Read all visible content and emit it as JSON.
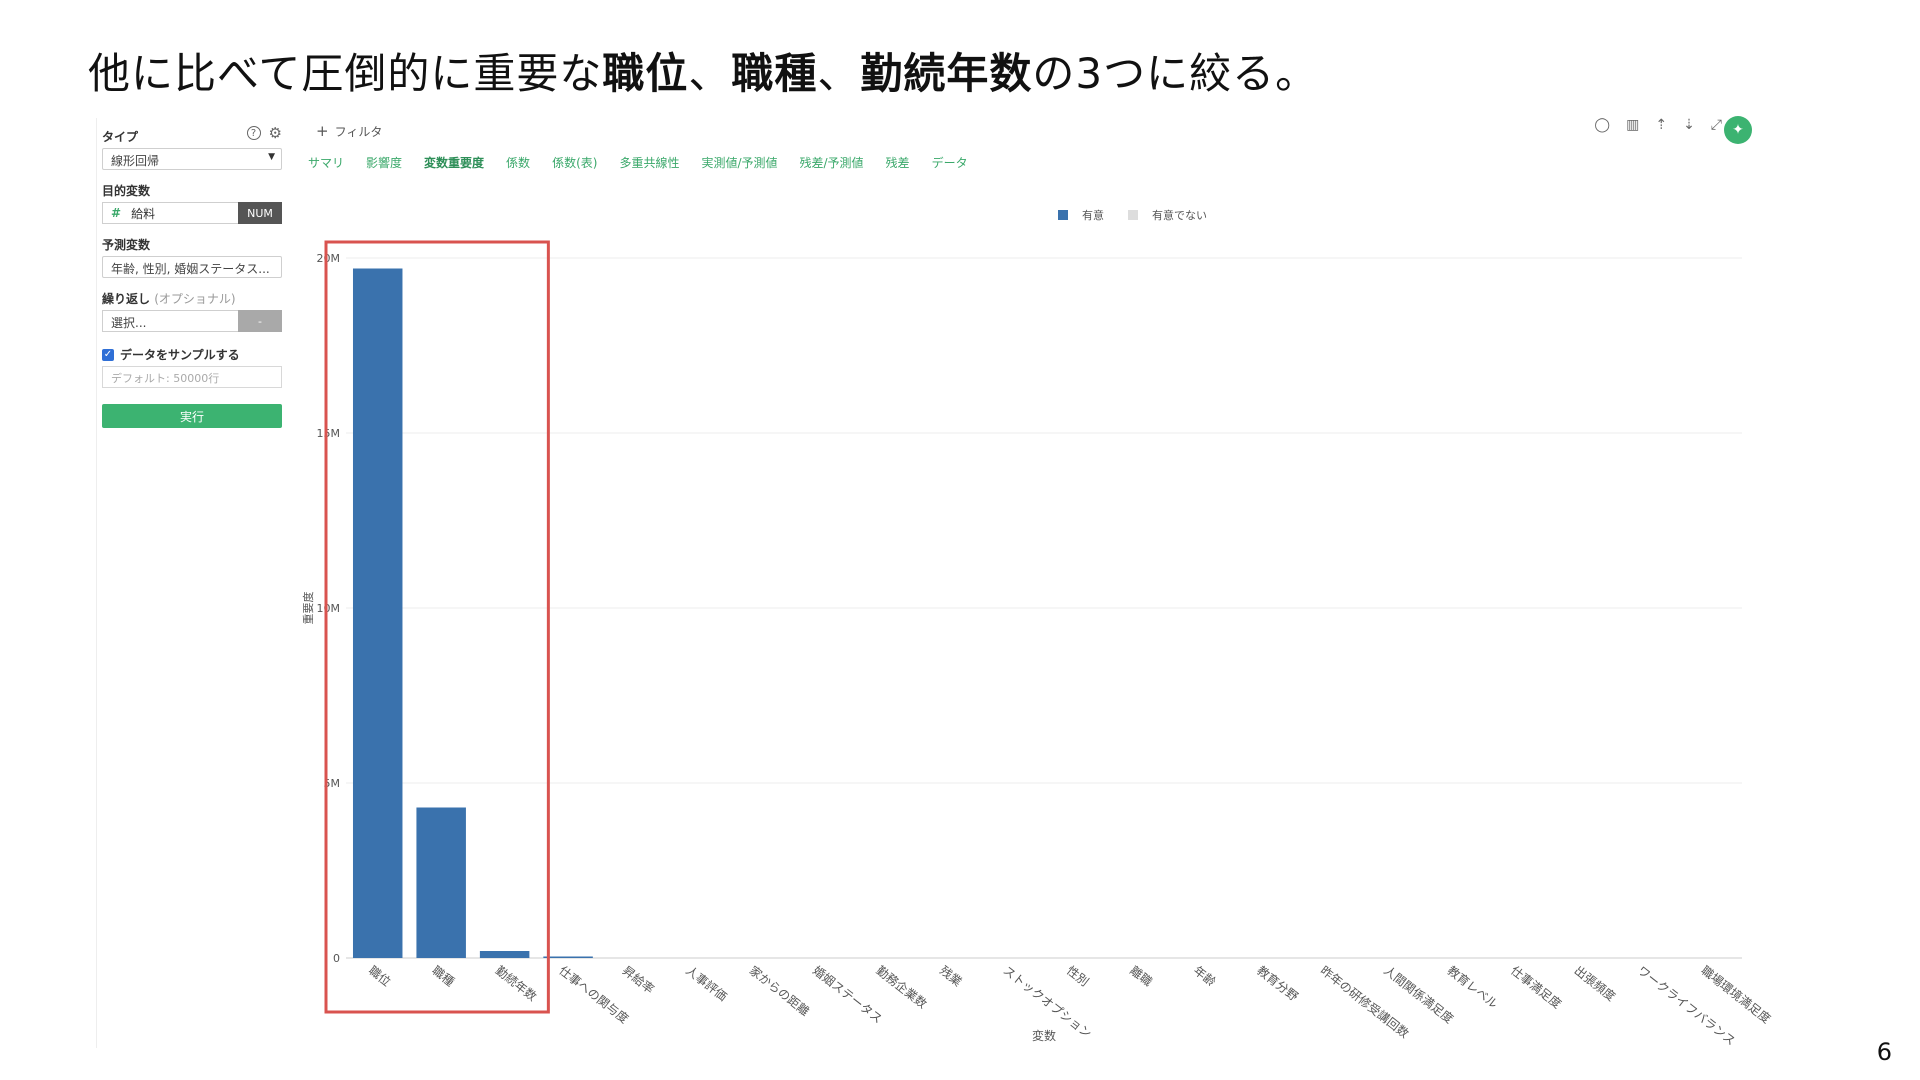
{
  "slide": {
    "title_parts": [
      {
        "text": "他に比べて圧倒的に重要な",
        "bold": false
      },
      {
        "text": "職位",
        "bold": true
      },
      {
        "text": "、",
        "bold": false
      },
      {
        "text": "職種",
        "bold": true
      },
      {
        "text": "、",
        "bold": false
      },
      {
        "text": "勤続年数",
        "bold": true
      },
      {
        "text": "の3つに絞る。",
        "bold": false
      }
    ],
    "page_number": "6"
  },
  "sidebar": {
    "type_label": "タイプ",
    "help_icon": "?",
    "type_value": "線形回帰",
    "target_label": "目的変数",
    "target_hash": "#",
    "target_value": "給料",
    "target_type": "NUM",
    "predictors_label": "予測変数",
    "predictors_value": "年齢, 性別, 婚姻ステータス...",
    "repeat_label": "繰り返し",
    "repeat_optional": "(オプショナル)",
    "repeat_value": "選択...",
    "repeat_dash": "-",
    "sample_label": "データをサンプルする",
    "sample_checked": true,
    "sample_placeholder": "デフォルト: 50000行",
    "run_label": "実行"
  },
  "main": {
    "filter_plus": "+",
    "filter_label": "フィルタ",
    "tabs": [
      {
        "label": "サマリ",
        "active": false
      },
      {
        "label": "影響度",
        "active": false
      },
      {
        "label": "変数重要度",
        "active": true
      },
      {
        "label": "係数",
        "active": false
      },
      {
        "label": "係数(表)",
        "active": false
      },
      {
        "label": "多重共線性",
        "active": false
      },
      {
        "label": "実測値/予測値",
        "active": false
      },
      {
        "label": "残差/予測値",
        "active": false
      },
      {
        "label": "残差",
        "active": false
      },
      {
        "label": "データ",
        "active": false
      }
    ],
    "tools": [
      "comment-icon",
      "chart-icon",
      "upload-icon",
      "download-icon",
      "expand-icon"
    ],
    "pin_icon": "pin-icon"
  },
  "colors": {
    "bar": "#3a72ad",
    "legend_not_significant": "#dddddd",
    "highlight_box": "#d9534f",
    "accent_green": "#3cb371"
  },
  "chart_data": {
    "type": "bar",
    "xlabel": "変数",
    "ylabel": "重要度",
    "ylim": [
      0,
      20000000
    ],
    "yticks": [
      0,
      5000000,
      10000000,
      15000000,
      20000000
    ],
    "ytick_labels": [
      "0",
      "5M",
      "10M",
      "15M",
      "20M"
    ],
    "legend": [
      {
        "label": "有意",
        "color": "#3a72ad"
      },
      {
        "label": "有意でない",
        "color": "#dddddd"
      }
    ],
    "legend_position": "top-center",
    "grid": true,
    "categories": [
      "職位",
      "職種",
      "勤続年数",
      "仕事への関与度",
      "昇給率",
      "人事評価",
      "家からの距離",
      "婚姻ステータス",
      "勤務企業数",
      "残業",
      "ストックオプション",
      "性別",
      "離職",
      "年齢",
      "教育分野",
      "昨年の研修受講回数",
      "人間関係満足度",
      "教育レベル",
      "仕事満足度",
      "出張頻度",
      "ワークライフバランス",
      "職場環境満足度"
    ],
    "series": [
      {
        "values": [
          19700000,
          4300000,
          200000,
          30000,
          0,
          0,
          0,
          0,
          0,
          0,
          0,
          0,
          0,
          0,
          0,
          0,
          0,
          0,
          0,
          0,
          0,
          0
        ]
      }
    ],
    "highlight_categories": [
      "職位",
      "職種",
      "勤続年数"
    ]
  }
}
